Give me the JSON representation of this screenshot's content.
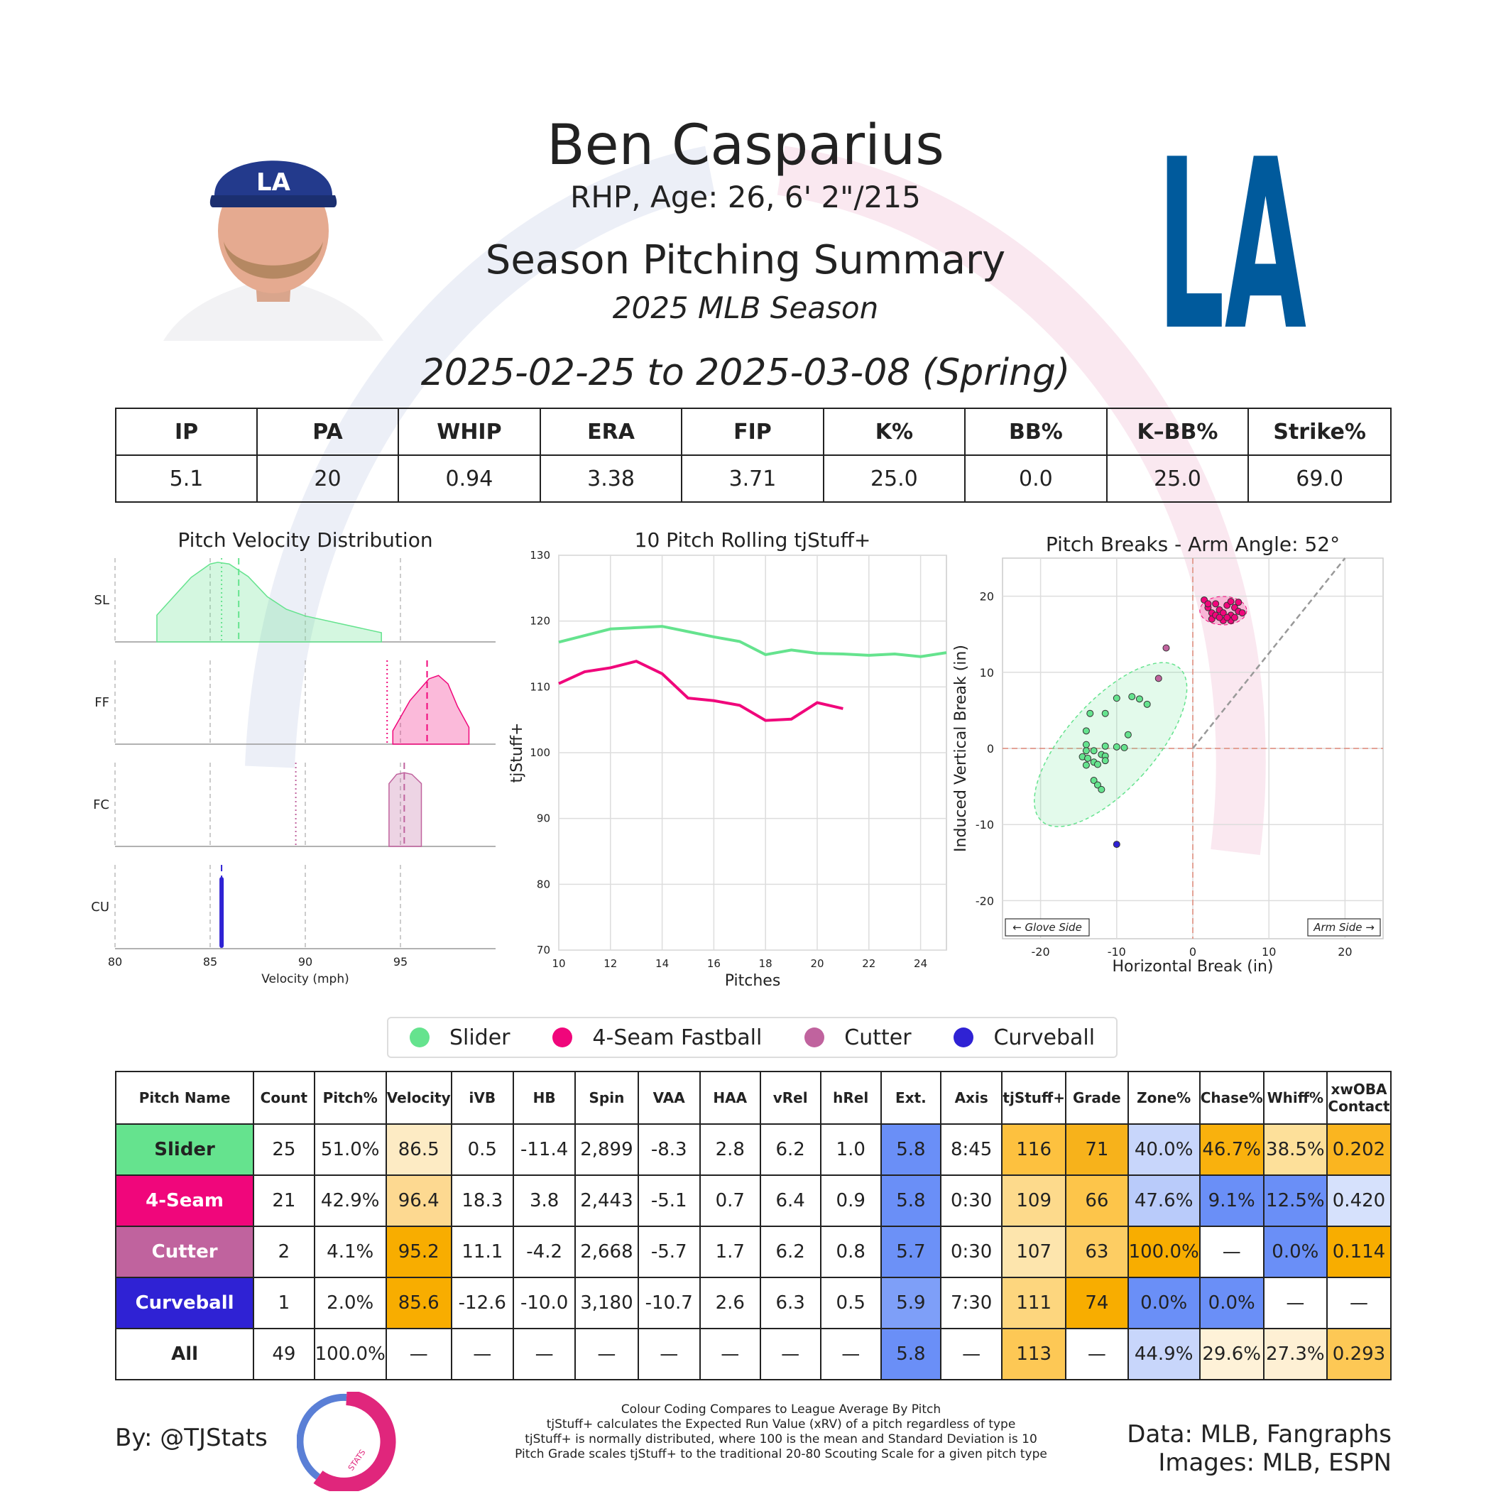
{
  "header": {
    "player_name": "Ben Casparius",
    "bio": "RHP, Age: 26, 6' 2\"/215",
    "subtitle": "Season Pitching Summary",
    "season": "2025 MLB Season",
    "date_range": "2025-02-25 to 2025-03-08 (Spring)",
    "team_logo_text": "LA"
  },
  "summary": {
    "headers": [
      "IP",
      "PA",
      "WHIP",
      "ERA",
      "FIP",
      "K%",
      "BB%",
      "K–BB%",
      "Strike%"
    ],
    "values": [
      "5.1",
      "20",
      "0.94",
      "3.38",
      "3.71",
      "25.0",
      "0.0",
      "25.0",
      "69.0"
    ]
  },
  "colors": {
    "slider": "#65e38e",
    "fastball": "#f0067b",
    "cutter": "#c0639e",
    "curveball": "#2f22d4",
    "table_orange": "#f7a800",
    "table_blue": "#6a8ff7"
  },
  "legend": [
    {
      "label": "Slider",
      "color": "#65e38e"
    },
    {
      "label": "4-Seam Fastball",
      "color": "#f0067b"
    },
    {
      "label": "Cutter",
      "color": "#c0639e"
    },
    {
      "label": "Curveball",
      "color": "#2f22d4"
    }
  ],
  "chart_data": [
    {
      "type": "area",
      "title": "Pitch Velocity Distribution",
      "xlabel": "Velocity (mph)",
      "xlim": [
        80,
        100
      ],
      "xticks": [
        "80",
        "85",
        "90",
        "95"
      ],
      "series": [
        {
          "name": "SL",
          "points": [
            [
              82.2,
              0.32
            ],
            [
              83,
              0.52
            ],
            [
              84,
              0.77
            ],
            [
              85,
              0.93
            ],
            [
              85.4,
              0.95
            ],
            [
              86,
              0.93
            ],
            [
              87,
              0.78
            ],
            [
              88,
              0.54
            ],
            [
              89,
              0.39
            ],
            [
              90,
              0.31
            ],
            [
              92,
              0.21
            ],
            [
              94,
              0.11
            ],
            [
              94,
              0.0
            ]
          ],
          "mean": 86.5,
          "league_mean": 85.6
        },
        {
          "name": "FF",
          "points": [
            [
              94.6,
              0.16
            ],
            [
              95.5,
              0.52
            ],
            [
              96.5,
              0.78
            ],
            [
              97,
              0.82
            ],
            [
              97.5,
              0.72
            ],
            [
              98,
              0.45
            ],
            [
              98.6,
              0.2
            ]
          ],
          "mean": 96.4,
          "league_mean": 94.3
        },
        {
          "name": "FC",
          "points": [
            [
              94.4,
              0.75
            ],
            [
              94.8,
              0.86
            ],
            [
              95.2,
              0.88
            ],
            [
              95.6,
              0.86
            ],
            [
              96.1,
              0.75
            ]
          ],
          "mean": 95.2,
          "league_mean": 89.5
        },
        {
          "name": "CU",
          "points": [
            [
              85.6,
              0.78
            ]
          ],
          "mean": 85.6,
          "league_mean": 85.6
        }
      ]
    },
    {
      "type": "line",
      "title": "10 Pitch Rolling tjStuff+",
      "xlabel": "Pitches",
      "ylabel": "tjStuff+",
      "xlim": [
        10,
        25
      ],
      "ylim": [
        70,
        130
      ],
      "xticks": [
        "10",
        "12",
        "14",
        "16",
        "18",
        "20",
        "22",
        "24"
      ],
      "yticks": [
        "70",
        "80",
        "90",
        "100",
        "110",
        "120",
        "130"
      ],
      "series": [
        {
          "name": "Slider",
          "x": [
            10,
            11,
            12,
            13,
            14,
            15,
            16,
            17,
            18,
            19,
            20,
            21,
            22,
            23,
            24,
            25
          ],
          "y": [
            116.8,
            117.8,
            118.8,
            119.0,
            119.2,
            118.4,
            117.6,
            116.9,
            114.9,
            115.6,
            115.1,
            115.0,
            114.8,
            115.0,
            114.6,
            115.2
          ]
        },
        {
          "name": "4-Seam Fastball",
          "x": [
            10,
            11,
            12,
            13,
            14,
            15,
            16,
            17,
            18,
            19,
            20,
            21
          ],
          "y": [
            110.5,
            112.3,
            112.9,
            113.9,
            112.0,
            108.3,
            107.9,
            107.2,
            104.9,
            105.1,
            107.6,
            106.7
          ]
        }
      ]
    },
    {
      "type": "scatter",
      "title": "Pitch Breaks - Arm Angle: 52°",
      "xlabel": "Horizontal Break (in)",
      "ylabel": "Induced Vertical Break (in)",
      "xlim": [
        -25,
        25
      ],
      "ylim": [
        -25,
        25
      ],
      "xticks": [
        "-20",
        "-10",
        "0",
        "10",
        "20"
      ],
      "yticks": [
        "20",
        "10",
        "0",
        "-10",
        "-20"
      ],
      "annotations": [
        "← Glove Side",
        "Arm Side →"
      ],
      "series": [
        {
          "name": "Slider",
          "points": [
            [
              -14,
              2.3
            ],
            [
              -14,
              0.5
            ],
            [
              -13,
              -0.3
            ],
            [
              -11.5,
              0.3
            ],
            [
              -14.5,
              -1.1
            ],
            [
              -13.8,
              -1.3
            ],
            [
              -13,
              -1.8
            ],
            [
              -12,
              -0.8
            ],
            [
              -11.5,
              -1.0
            ],
            [
              -11.5,
              -1.6
            ],
            [
              -13,
              -4.2
            ],
            [
              -12.5,
              -4.8
            ],
            [
              -12,
              -5.4
            ],
            [
              -10,
              0.2
            ],
            [
              -9,
              0.1
            ],
            [
              -8.5,
              1.8
            ],
            [
              -8,
              6.8
            ],
            [
              -7,
              6.5
            ],
            [
              -6,
              5.8
            ],
            [
              -10,
              6.6
            ],
            [
              -11.5,
              4.6
            ],
            [
              -13.5,
              4.6
            ],
            [
              -14,
              -0.3
            ],
            [
              -14,
              -2.2
            ],
            [
              -12.5,
              -2.1
            ]
          ]
        },
        {
          "name": "4-Seam Fastball",
          "points": [
            [
              1.5,
              19.5
            ],
            [
              2,
              18.5
            ],
            [
              2.5,
              17.8
            ],
            [
              3,
              19.0
            ],
            [
              3.5,
              18.2
            ],
            [
              4,
              17.8
            ],
            [
              4.5,
              18.8
            ],
            [
              5,
              17.5
            ],
            [
              5.5,
              18.5
            ],
            [
              6,
              19.2
            ],
            [
              2.5,
              17.0
            ],
            [
              3,
              17.5
            ],
            [
              4,
              16.8
            ],
            [
              5,
              16.8
            ],
            [
              5.5,
              17.2
            ],
            [
              6,
              18.0
            ],
            [
              4.5,
              17.2
            ],
            [
              3.5,
              17.2
            ],
            [
              2,
              19.0
            ],
            [
              6.5,
              17.8
            ],
            [
              5,
              19.3
            ]
          ]
        },
        {
          "name": "Cutter",
          "points": [
            [
              -4.5,
              9.2
            ],
            [
              -3.5,
              13.2
            ]
          ]
        },
        {
          "name": "Curveball",
          "points": [
            [
              -10,
              -12.6
            ]
          ]
        }
      ]
    }
  ],
  "pitch_table": {
    "headers": [
      "Pitch Name",
      "Count",
      "Pitch%",
      "Velocity",
      "iVB",
      "HB",
      "Spin",
      "VAA",
      "HAA",
      "vRel",
      "hRel",
      "Ext.",
      "Axis",
      "tjStuff+",
      "Grade",
      "Zone%",
      "Chase%",
      "Whiff%",
      "xwOBA Contact"
    ],
    "rows": [
      {
        "cells": [
          "Slider",
          "25",
          "51.0%",
          "86.5",
          "0.5",
          "-11.4",
          "2,899",
          "-8.3",
          "2.8",
          "6.2",
          "1.0",
          "5.8",
          "8:45",
          "116",
          "71",
          "40.0%",
          "46.7%",
          "38.5%",
          "0.202"
        ],
        "bg": [
          "#65e38e",
          "",
          "",
          "#fdebc4",
          "",
          "",
          "",
          "",
          "",
          "",
          "",
          "#6a8ff7",
          "",
          "#fdc13f",
          "#f7b21b",
          "#c8d6fb",
          "#f9b10d",
          "#fde09a",
          "#fab520"
        ]
      },
      {
        "cells": [
          "4-Seam",
          "21",
          "42.9%",
          "96.4",
          "18.3",
          "3.8",
          "2,443",
          "-5.1",
          "0.7",
          "6.4",
          "0.9",
          "5.8",
          "0:30",
          "109",
          "66",
          "47.6%",
          "9.1%",
          "12.5%",
          "0.420"
        ],
        "bg": [
          "#f0067b",
          "",
          "",
          "#fdd991",
          "",
          "",
          "",
          "",
          "",
          "",
          "",
          "#6a8ff7",
          "",
          "#fdda8c",
          "#fdc54a",
          "#b9cbfa",
          "#6a8ff7",
          "#6a8ff7",
          "#d6e1fc"
        ]
      },
      {
        "cells": [
          "Cutter",
          "2",
          "4.1%",
          "95.2",
          "11.1",
          "-4.2",
          "2,668",
          "-5.7",
          "1.7",
          "6.2",
          "0.8",
          "5.7",
          "0:30",
          "107",
          "63",
          "100.0%",
          "—",
          "0.0%",
          "0.114"
        ],
        "bg": [
          "#c0639e",
          "",
          "",
          "#f8ad00",
          "",
          "",
          "",
          "",
          "",
          "",
          "",
          "#6c91f7",
          "",
          "#fde5ad",
          "#fdcd63",
          "#f8ad00",
          "",
          "#6a8ff7",
          "#f8ad00"
        ]
      },
      {
        "cells": [
          "Curveball",
          "1",
          "2.0%",
          "85.6",
          "-12.6",
          "-10.0",
          "3,180",
          "-10.7",
          "2.6",
          "6.3",
          "0.5",
          "5.9",
          "7:30",
          "111",
          "74",
          "0.0%",
          "0.0%",
          "—",
          "—"
        ],
        "bg": [
          "#2f22d4",
          "",
          "",
          "#f8ad00",
          "",
          "",
          "",
          "",
          "",
          "",
          "",
          "#7e9ff8",
          "",
          "#fdd67e",
          "#f8ad00",
          "#6a8ff7",
          "#6a8ff7",
          "",
          ""
        ]
      },
      {
        "cells": [
          "All",
          "49",
          "100.0%",
          "—",
          "—",
          "—",
          "—",
          "—",
          "—",
          "—",
          "—",
          "5.8",
          "—",
          "113",
          "—",
          "44.9%",
          "29.6%",
          "27.3%",
          "0.293"
        ],
        "bg": [
          "",
          "",
          "",
          "",
          "",
          "",
          "",
          "",
          "",
          "",
          "",
          "#6a8ff7",
          "",
          "#fdc855",
          "",
          "#c8d6fb",
          "#fef2d8",
          "#fef0d4",
          "#fdc855"
        ]
      }
    ]
  },
  "footer": {
    "by": "By: @TJStats",
    "logo_text": "STATS",
    "notes": [
      "Colour Coding Compares to League Average By Pitch",
      "tjStuff+ calculates the Expected Run Value (xRV) of a pitch regardless of type",
      "tjStuff+ is normally distributed, where 100 is the mean and Standard Deviation is 10",
      "Pitch Grade scales tjStuff+ to the traditional 20-80 Scouting Scale for a given pitch type"
    ],
    "data_source": "Data: MLB, Fangraphs",
    "images_source": "Images: MLB, ESPN"
  }
}
